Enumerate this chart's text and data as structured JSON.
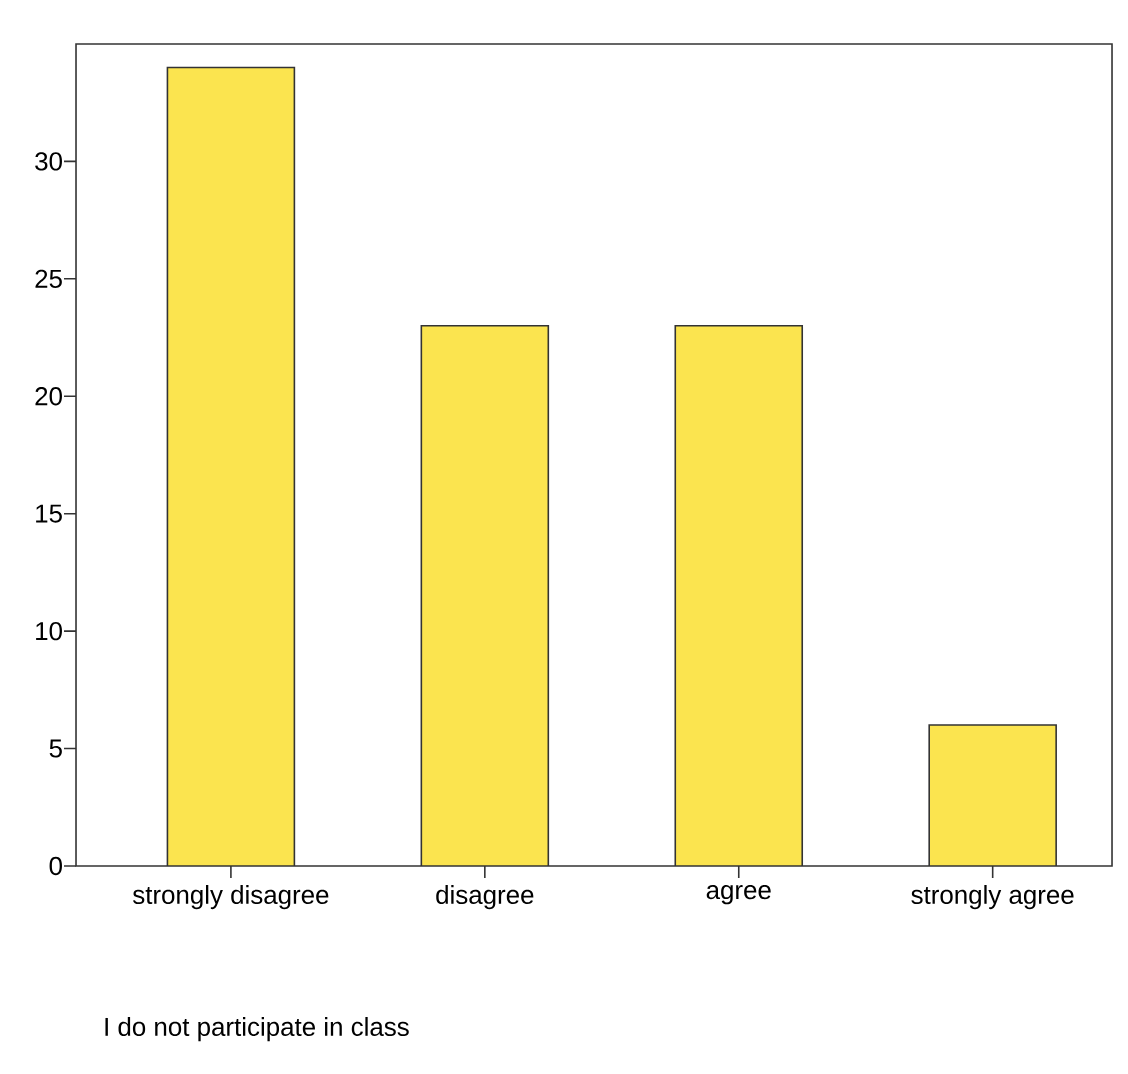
{
  "chart_data": {
    "type": "bar",
    "xlabel": "I do not participate in class",
    "categories": [
      "strongly disagree",
      "disagree",
      "agree",
      "strongly agree"
    ],
    "values": [
      34,
      23,
      23,
      6
    ],
    "color": "#fbe44f",
    "ylim": [
      0,
      35
    ],
    "yticks": [
      0,
      5,
      10,
      15,
      20,
      25,
      30
    ]
  }
}
